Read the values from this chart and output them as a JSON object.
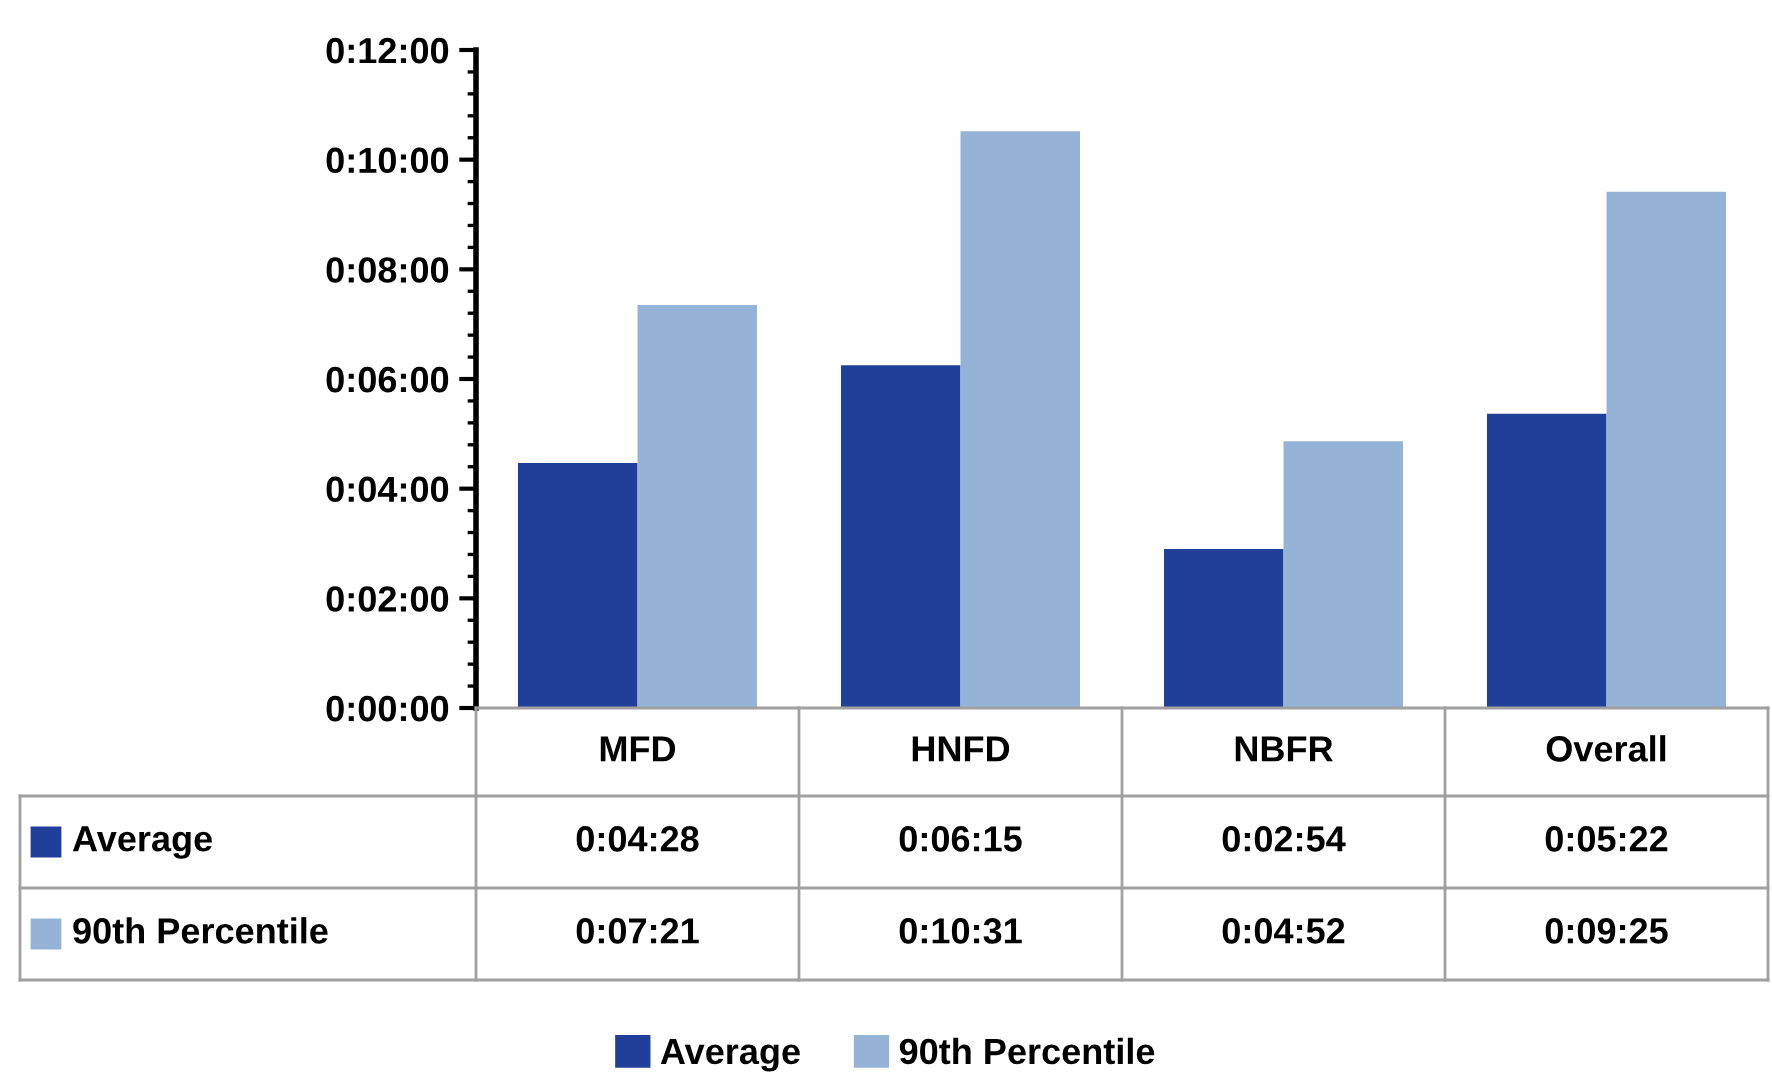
{
  "chart_data": {
    "type": "bar",
    "categories": [
      "MFD",
      "HNFD",
      "NBFR",
      "Overall"
    ],
    "series": [
      {
        "name": "Average",
        "color": "#203f98",
        "values": [
          268,
          375,
          174,
          322
        ],
        "value_labels": [
          "0:04:28",
          "0:06:15",
          "0:02:54",
          "0:05:22"
        ]
      },
      {
        "name": "90th Percentile",
        "color": "#95b3d7",
        "values": [
          441,
          631,
          292,
          565
        ],
        "value_labels": [
          "0:07:21",
          "0:10:31",
          "0:04:52",
          "0:09:25"
        ]
      }
    ],
    "ylim": [
      0,
      720
    ],
    "yticks": [
      {
        "value": 0,
        "label": "0:00:00"
      },
      {
        "value": 120,
        "label": "0:02:00"
      },
      {
        "value": 240,
        "label": "0:04:00"
      },
      {
        "value": 360,
        "label": "0:06:00"
      },
      {
        "value": 480,
        "label": "0:08:00"
      },
      {
        "value": 600,
        "label": "0:10:00"
      },
      {
        "value": 720,
        "label": "0:12:00"
      }
    ],
    "grid": false,
    "legend": "bottom"
  }
}
